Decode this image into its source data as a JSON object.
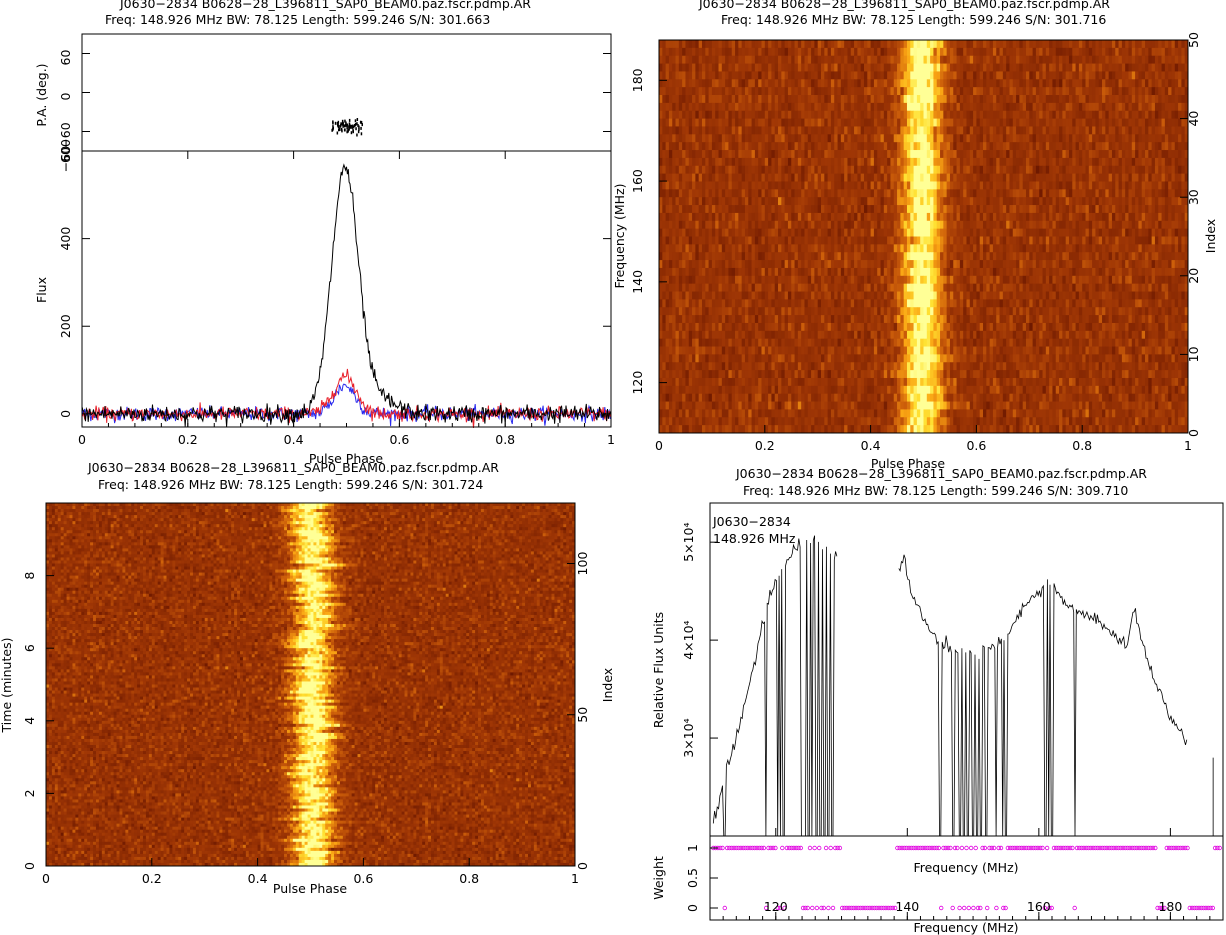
{
  "colors": {
    "axis": "#000000",
    "intensity": "#000000",
    "linear_l": "#e8202a",
    "circular_v": "#2a2aee",
    "pa": "#000000",
    "weight": "#e000e0",
    "heat_low": "#7a1e00",
    "heat_mid": "#c8500a",
    "heat_high": "#ffff80"
  },
  "chart_data": [
    {
      "id": "profile",
      "type": "line",
      "title_line1": "J0630−2834  B0628−28_L396811_SAP0_BEAM0.paz.fscr.pdmp.AR",
      "title_line2": "Freq:  148.926  MHz  BW:  78.125  Length:  599.246  S/N:  301.663",
      "xlabel": "Pulse Phase",
      "ylabel": "Flux",
      "xlim": [
        0,
        1
      ],
      "ylim": [
        -30,
        600
      ],
      "xticks": [
        0,
        0.2,
        0.4,
        0.6,
        0.8,
        1
      ],
      "xtick_labels": [
        "0",
        "0.2",
        "0.4",
        "0.6",
        "0.8",
        "1"
      ],
      "yticks": [
        0,
        200,
        400,
        600
      ],
      "ytick_labels": [
        "0",
        "200",
        "400",
        "600"
      ],
      "pa_panel": {
        "ylabel": "P.A. (deg.)",
        "ylim": [
          -90,
          90
        ],
        "yticks": [
          -60,
          0,
          60
        ],
        "ytick_labels": [
          "−60",
          "0",
          "60"
        ],
        "x_range": [
          0.47,
          0.53
        ],
        "mean": -50
      },
      "series": [
        {
          "key": "intensity",
          "peak_phase": 0.497,
          "peak": 560,
          "width": 0.025,
          "noise": 10
        },
        {
          "key": "linear_l",
          "peak_phase": 0.497,
          "peak": 85,
          "width": 0.022,
          "noise": 8
        },
        {
          "key": "circular_v",
          "peak_phase": 0.497,
          "peak": 65,
          "width": 0.02,
          "noise": 8
        }
      ]
    },
    {
      "id": "freq_phase",
      "type": "heatmap",
      "title_line1": "J0630−2834  B0628−28_L396811_SAP0_BEAM0.paz.fscr.pdmp.AR",
      "title_line2": "Freq:  148.926  MHz  BW:  78.125  Length:  599.246  S/N:  301.716",
      "xlabel": "Pulse Phase",
      "ylabel": "Frequency (MHz)",
      "y2label": "Index",
      "xlim": [
        0,
        1
      ],
      "ylim": [
        110,
        188
      ],
      "y2lim": [
        0,
        50
      ],
      "xticks": [
        0,
        0.2,
        0.4,
        0.6,
        0.8,
        1
      ],
      "xtick_labels": [
        "0",
        "0.2",
        "0.4",
        "0.6",
        "0.8",
        "1"
      ],
      "yticks": [
        120,
        140,
        160,
        180
      ],
      "ytick_labels": [
        "120",
        "140",
        "160",
        "180"
      ],
      "y2ticks": [
        0,
        10,
        20,
        30,
        40,
        50
      ],
      "y2tick_labels": [
        "0",
        "10",
        "20",
        "30",
        "40",
        "50"
      ],
      "rows": 50,
      "cols": 160,
      "pulse_center": 0.497,
      "pulse_width": 0.028
    },
    {
      "id": "time_phase",
      "type": "heatmap",
      "title_line1": "J0630−2834  B0628−28_L396811_SAP0_BEAM0.paz.fscr.pdmp.AR",
      "title_line2": "Freq:  148.926  MHz  BW:  78.125  Length:  599.246  S/N:  301.724",
      "xlabel": "Pulse Phase",
      "ylabel": "Time (minutes)",
      "y2label": "Index",
      "xlim": [
        0,
        1
      ],
      "ylim": [
        0,
        10
      ],
      "y2lim": [
        0,
        120
      ],
      "xticks": [
        0,
        0.2,
        0.4,
        0.6,
        0.8,
        1
      ],
      "xtick_labels": [
        "0",
        "0.2",
        "0.4",
        "0.6",
        "0.8",
        "1"
      ],
      "yticks": [
        0,
        2,
        4,
        6,
        8
      ],
      "ytick_labels": [
        "0",
        "2",
        "4",
        "6",
        "8"
      ],
      "y2ticks": [
        0,
        50,
        100
      ],
      "y2tick_labels": [
        "0",
        "50",
        "100"
      ],
      "rows": 120,
      "cols": 180,
      "pulse_center": 0.505,
      "pulse_width": 0.028
    },
    {
      "id": "bandpass",
      "type": "line",
      "title_line1": "J0630−2834  B0628−28_L396811_SAP0_BEAM0.paz.fscr.pdmp.AR",
      "title_line2": "Freq:  148.926  MHz  BW:  78.125  Length:  599.246  S/N:  309.710",
      "annotation_line1": "J0630−2834",
      "annotation_line2": "148.926  MHz",
      "xlabel": "Frequency (MHz)",
      "xlabel_inner": "Frequency (MHz)",
      "ylabel": "Relative Flux Units",
      "xlim": [
        110,
        188
      ],
      "ylim": [
        20000,
        54000
      ],
      "xticks": [
        120,
        140,
        160,
        180
      ],
      "xtick_labels": [
        "120",
        "140",
        "160",
        "180"
      ],
      "yticks": [
        30000,
        40000,
        50000
      ],
      "ytick_labels": [
        "3×10⁴",
        "4×10⁴",
        "5×10⁴"
      ],
      "weight_panel": {
        "ylabel": "Weight",
        "ylim": [
          -0.2,
          1.2
        ],
        "yticks": [
          0,
          0.5,
          1
        ],
        "ytick_labels": [
          "0",
          "0.5",
          "1"
        ]
      },
      "curve_points": [
        [
          110.5,
          21000
        ],
        [
          111.5,
          24000
        ],
        [
          112.5,
          27000
        ],
        [
          113.5,
          29000
        ],
        [
          114.5,
          31500
        ],
        [
          115.5,
          34000
        ],
        [
          116.5,
          37000
        ],
        [
          117.5,
          40000
        ],
        [
          118.5,
          43000
        ],
        [
          119.5,
          45000
        ],
        [
          120.5,
          46500
        ],
        [
          121.5,
          48000
        ],
        [
          122.5,
          49000
        ],
        [
          123.5,
          49500
        ],
        [
          124.5,
          50000
        ],
        [
          125.5,
          50000
        ],
        [
          126.5,
          50500
        ],
        [
          127.5,
          49500
        ],
        [
          128.5,
          49000
        ],
        [
          129.5,
          48500
        ],
        [
          138.5,
          47000
        ],
        [
          139.5,
          48500
        ],
        [
          140.5,
          45000
        ],
        [
          141.5,
          43500
        ],
        [
          142.5,
          42000
        ],
        [
          143.5,
          41000
        ],
        [
          144.5,
          40000
        ],
        [
          145.5,
          39500
        ],
        [
          146.5,
          39000
        ],
        [
          147.5,
          38500
        ],
        [
          148.5,
          39000
        ],
        [
          149.5,
          39000
        ],
        [
          150.5,
          38500
        ],
        [
          151.5,
          39000
        ],
        [
          152.5,
          39500
        ],
        [
          153.5,
          39000
        ],
        [
          154.5,
          40000
        ],
        [
          155.5,
          40500
        ],
        [
          156.5,
          42000
        ],
        [
          157.5,
          43000
        ],
        [
          158.5,
          44000
        ],
        [
          159.5,
          44500
        ],
        [
          160.5,
          45000
        ],
        [
          161.5,
          46000
        ],
        [
          162.5,
          45000
        ],
        [
          163.5,
          44000
        ],
        [
          164.5,
          43500
        ],
        [
          165.5,
          43000
        ],
        [
          166.5,
          43000
        ],
        [
          167.5,
          42500
        ],
        [
          168.5,
          42000
        ],
        [
          169.5,
          41500
        ],
        [
          170.5,
          41000
        ],
        [
          171.5,
          40500
        ],
        [
          172.5,
          40000
        ],
        [
          173.5,
          39500
        ],
        [
          174.5,
          43500
        ],
        [
          175.5,
          40000
        ],
        [
          176.5,
          38500
        ],
        [
          177.5,
          36000
        ],
        [
          179.5,
          33000
        ],
        [
          180.5,
          31500
        ],
        [
          181.5,
          31000
        ],
        [
          182.5,
          29500
        ]
      ],
      "zapped_ranges": [
        [
          129.8,
          138.2
        ],
        [
          177.8,
          179.2
        ],
        [
          182.8,
          186.5
        ]
      ],
      "dropout_channels": [
        112.2,
        118.5,
        120.3,
        120.7,
        121.2,
        124.0,
        124.4,
        125.0,
        125.5,
        126.2,
        126.8,
        127.4,
        128.0,
        128.6,
        145.0,
        147.0,
        148.0,
        148.6,
        149.2,
        150.0,
        150.6,
        151.2,
        152.0,
        153.5,
        154.5,
        155.0,
        161.0,
        161.5,
        162.0,
        165.5
      ],
      "spike_points": [
        [
          186.5,
          28000
        ]
      ]
    }
  ]
}
